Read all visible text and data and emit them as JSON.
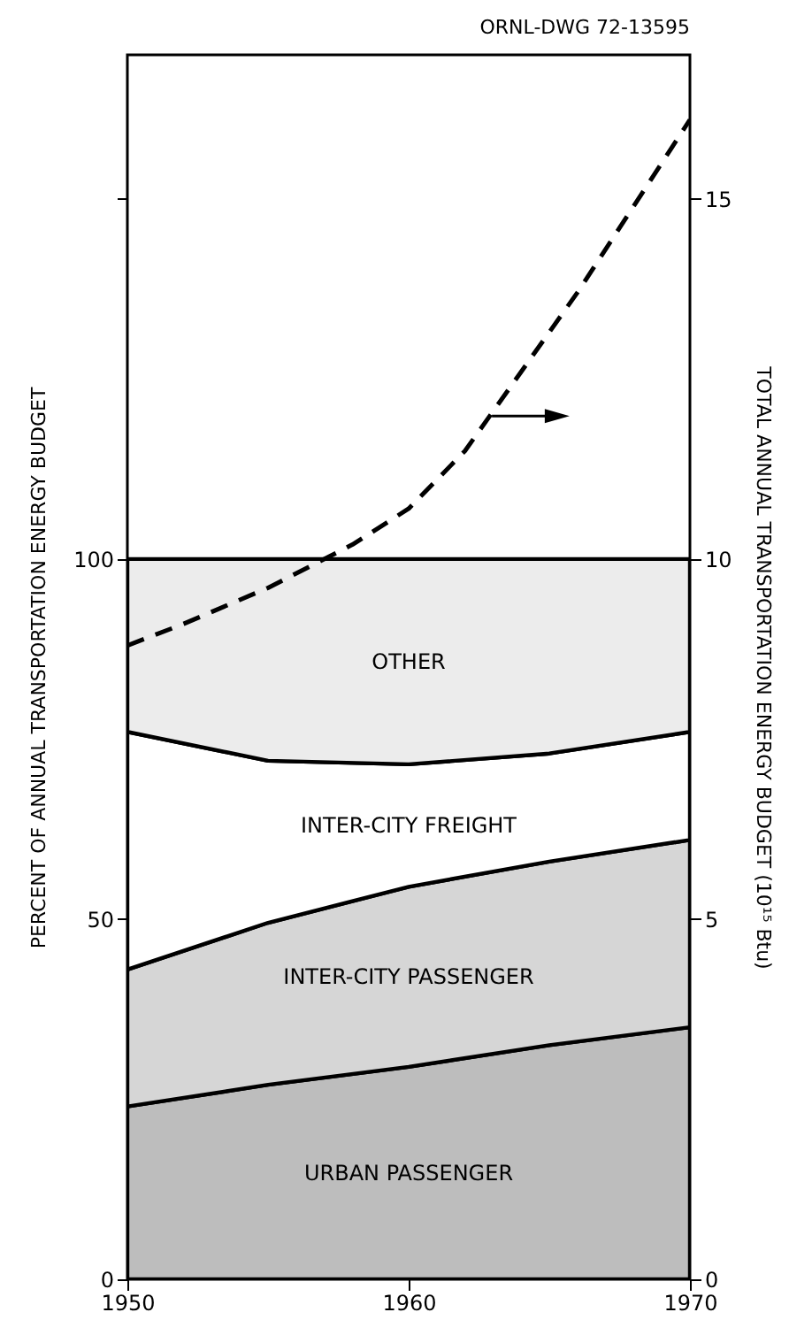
{
  "chart_data": {
    "type": "area",
    "stacked": true,
    "annotations": [
      "ORNL-DWG 72-13595"
    ],
    "ylabel": "PERCENT OF ANNUAL TRANSPORTATION ENERGY BUDGET",
    "y2label": "TOTAL ANNUAL TRANSPORTATION ENERGY BUDGET (10¹⁵ Btu)",
    "x": [
      1950,
      1955,
      1960,
      1965,
      1970
    ],
    "xlim": [
      1950,
      1970
    ],
    "xticks": [
      1950,
      1960,
      1970
    ],
    "ylim": [
      0,
      170
    ],
    "yticks": [
      0,
      50,
      100,
      {
        "value": 150,
        "label": null
      }
    ],
    "y2lim": [
      0,
      17
    ],
    "y2ticks": [
      0,
      5,
      10,
      15
    ],
    "grid": false,
    "series": [
      {
        "name": "URBAN PASSENGER",
        "color": "#bdbdbd",
        "values": [
          24,
          27,
          29.5,
          32.5,
          35
        ]
      },
      {
        "name": "INTER-CITY PASSENGER",
        "color": "#d6d6d6",
        "values": [
          19,
          22.5,
          25,
          25.5,
          26
        ]
      },
      {
        "name": "INTER-CITY FREIGHT",
        "color": "#ffffff",
        "values": [
          33,
          22.5,
          17,
          15,
          15
        ]
      },
      {
        "name": "OTHER",
        "color": "#ececec",
        "values": [
          24,
          28,
          28.5,
          27,
          24
        ]
      },
      {
        "type": "line",
        "axis": "y2",
        "color": "#000000",
        "line_style": "dashed",
        "x": [
          1950,
          1952,
          1955,
          1958,
          1960,
          1962,
          1964,
          1966,
          1968,
          1970
        ],
        "values": [
          8.8,
          9.1,
          9.6,
          10.2,
          10.7,
          11.5,
          12.6,
          13.7,
          14.9,
          16.1
        ]
      }
    ]
  }
}
